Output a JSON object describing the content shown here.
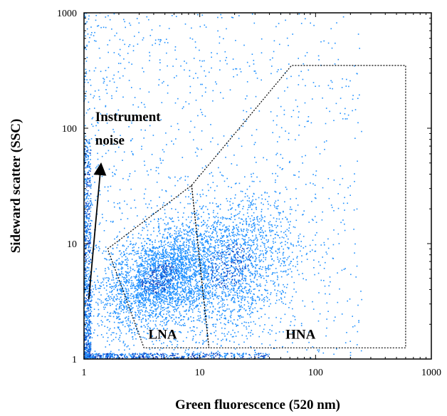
{
  "chart_data": {
    "type": "scatter",
    "title": "",
    "xlabel": "Green fluorescence (520 nm)",
    "ylabel": "Sideward scatter (SSC)",
    "x_scale": "log",
    "y_scale": "log",
    "xlim": [
      1,
      1000
    ],
    "ylim": [
      1,
      1000
    ],
    "x_ticks": [
      "1",
      "10",
      "100",
      "1000"
    ],
    "y_ticks": [
      "1",
      "10",
      "100",
      "1000"
    ],
    "grid": false,
    "point_color": "#1e90ff",
    "dense_color": "#0a3fbf",
    "populations": [
      {
        "name": "LNA",
        "center": [
          4.5,
          5.0
        ],
        "spread": [
          0.25,
          0.2
        ],
        "weight": 0.5
      },
      {
        "name": "HNA",
        "center": [
          18,
          6.5
        ],
        "spread": [
          0.3,
          0.3
        ],
        "weight": 0.35
      }
    ],
    "gates": [
      {
        "name": "LNA",
        "polygon": [
          [
            1.6,
            9
          ],
          [
            8.5,
            32
          ],
          [
            12,
            1.25
          ],
          [
            3.3,
            1.25
          ],
          [
            1.6,
            9
          ]
        ]
      },
      {
        "name": "HNA",
        "polygon": [
          [
            8.5,
            32
          ],
          [
            62,
            350
          ],
          [
            600,
            350
          ],
          [
            600,
            1.25
          ],
          [
            12,
            1.25
          ],
          [
            8.5,
            32
          ]
        ]
      }
    ],
    "annotations": [
      {
        "text": "Instrument",
        "at": [
          1.25,
          115
        ]
      },
      {
        "text": "noise",
        "at": [
          1.25,
          72
        ]
      },
      {
        "text": "LNA",
        "at": [
          3.6,
          1.5
        ]
      },
      {
        "text": "HNA",
        "at": [
          55,
          1.5
        ]
      }
    ],
    "arrow": {
      "from": [
        1.1,
        3.3
      ],
      "to": [
        1.4,
        48
      ]
    }
  }
}
